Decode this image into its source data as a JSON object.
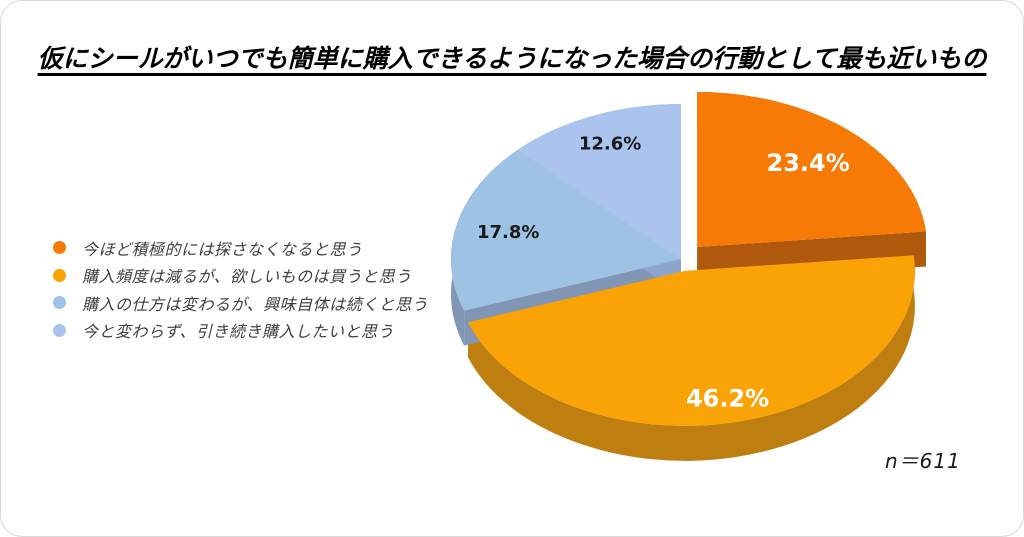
{
  "card": {
    "background": "#FFFFFF",
    "border_color": "#D9D9D9"
  },
  "chart_data": {
    "type": "pie",
    "style": "3d-exploded",
    "title": "仮にシールがいつでも簡単に購入できるようになった場合の行動として最も近いもの",
    "unit": "%",
    "direction": "clockwise",
    "start_angle_deg": 0,
    "legend_position": "left",
    "labels_on_slices": true,
    "sample_label": "n＝611",
    "slices": [
      {
        "label": "今ほど積極的には探さなくなると思う",
        "value": 23.4,
        "data_label": "23.4%",
        "color": "#F87A06",
        "side_color": "#B0590D",
        "label_color": "#FFFFFF"
      },
      {
        "label": "購入頻度は減るが、欲しいものは買うと思う",
        "value": 46.2,
        "data_label": "46.2%",
        "color": "#FAA306",
        "side_color": "#BF7E10",
        "label_color": "#FFFFFF"
      },
      {
        "label": "購入の仕方は変わるが、興味自体は続くと思う",
        "value": 17.8,
        "data_label": "17.8%",
        "color": "#9DC2E4",
        "side_color": "#8096B4",
        "label_color": "#1A1A1A"
      },
      {
        "label": "今と変わらず、引き続き購入したいと思う",
        "value": 12.6,
        "data_label": "12.6%",
        "color": "#ABC4EE",
        "side_color": "#8FA6CC",
        "label_color": "#1A1A1A"
      }
    ]
  }
}
